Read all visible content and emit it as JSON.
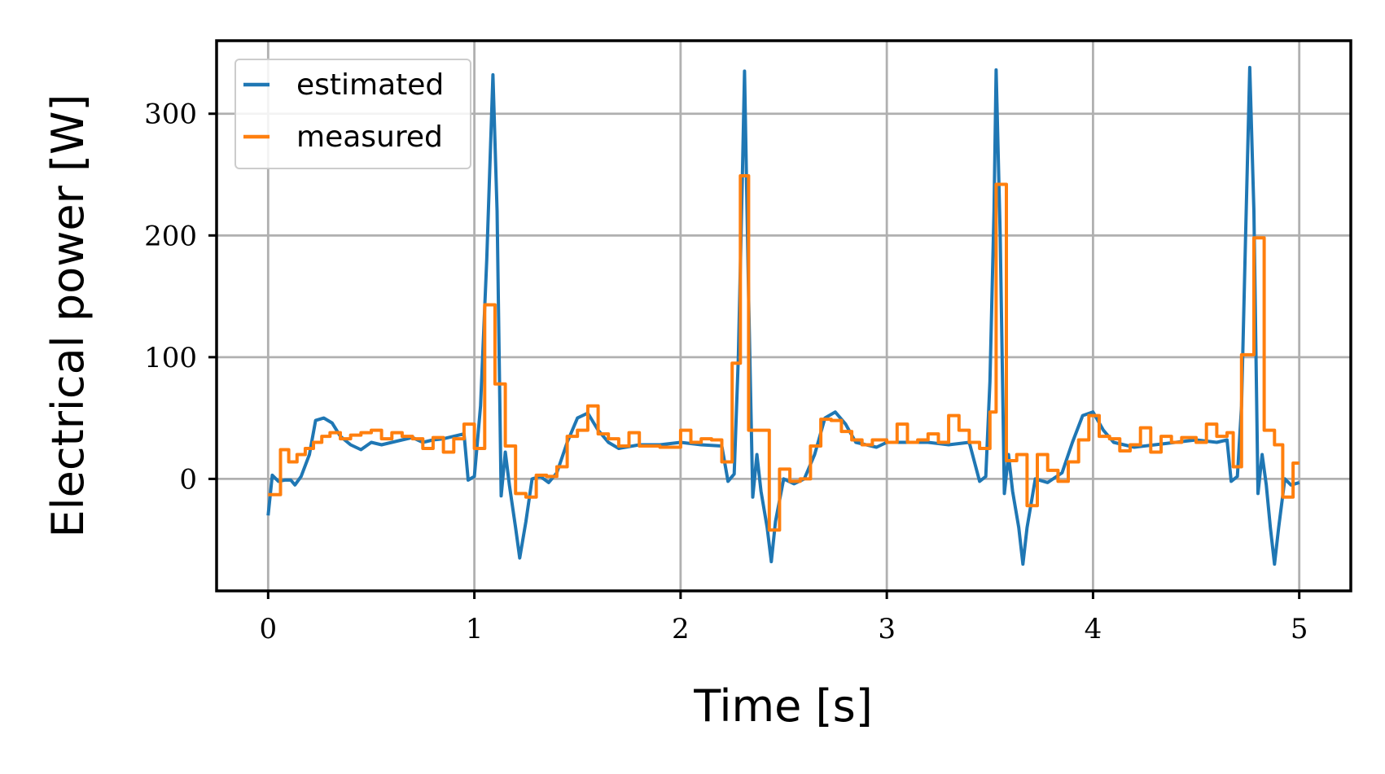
{
  "chart_data": {
    "type": "line",
    "title": "",
    "xlabel": "Time [s]",
    "ylabel": "Electrical power [W]",
    "xlim": [
      -0.25,
      5.25
    ],
    "ylim": [
      -92,
      360
    ],
    "xticks": [
      0,
      1,
      2,
      3,
      4,
      5
    ],
    "yticks": [
      0,
      100,
      200,
      300
    ],
    "grid": true,
    "legend_position": "top-left",
    "colors": {
      "estimated": "#1f77b4",
      "measured": "#ff7f0e"
    },
    "series": [
      {
        "name": "estimated",
        "kind": "line",
        "points": [
          [
            0.0,
            -30
          ],
          [
            0.02,
            3
          ],
          [
            0.05,
            -2
          ],
          [
            0.08,
            -1
          ],
          [
            0.11,
            -1
          ],
          [
            0.13,
            -5
          ],
          [
            0.16,
            2
          ],
          [
            0.2,
            20
          ],
          [
            0.23,
            48
          ],
          [
            0.27,
            50
          ],
          [
            0.31,
            46
          ],
          [
            0.35,
            35
          ],
          [
            0.4,
            28
          ],
          [
            0.45,
            24
          ],
          [
            0.5,
            30
          ],
          [
            0.55,
            28
          ],
          [
            0.6,
            30
          ],
          [
            0.65,
            32
          ],
          [
            0.7,
            34
          ],
          [
            0.75,
            30
          ],
          [
            0.8,
            32
          ],
          [
            0.85,
            33
          ],
          [
            0.9,
            35
          ],
          [
            0.95,
            37
          ],
          [
            0.97,
            -1
          ],
          [
            1.0,
            2
          ],
          [
            1.03,
            60
          ],
          [
            1.06,
            180
          ],
          [
            1.09,
            332
          ],
          [
            1.11,
            220
          ],
          [
            1.13,
            -14
          ],
          [
            1.15,
            22
          ],
          [
            1.17,
            -5
          ],
          [
            1.2,
            -40
          ],
          [
            1.22,
            -65
          ],
          [
            1.25,
            -35
          ],
          [
            1.28,
            0
          ],
          [
            1.32,
            2
          ],
          [
            1.36,
            -3
          ],
          [
            1.4,
            5
          ],
          [
            1.45,
            30
          ],
          [
            1.5,
            50
          ],
          [
            1.55,
            54
          ],
          [
            1.6,
            40
          ],
          [
            1.65,
            30
          ],
          [
            1.7,
            25
          ],
          [
            1.8,
            28
          ],
          [
            1.9,
            28
          ],
          [
            2.0,
            30
          ],
          [
            2.1,
            28
          ],
          [
            2.2,
            27
          ],
          [
            2.23,
            -2
          ],
          [
            2.26,
            4
          ],
          [
            2.28,
            100
          ],
          [
            2.3,
            250
          ],
          [
            2.31,
            335
          ],
          [
            2.33,
            150
          ],
          [
            2.35,
            -15
          ],
          [
            2.37,
            20
          ],
          [
            2.39,
            -10
          ],
          [
            2.42,
            -40
          ],
          [
            2.44,
            -68
          ],
          [
            2.46,
            -35
          ],
          [
            2.5,
            0
          ],
          [
            2.55,
            -4
          ],
          [
            2.6,
            0
          ],
          [
            2.65,
            20
          ],
          [
            2.7,
            50
          ],
          [
            2.75,
            55
          ],
          [
            2.8,
            45
          ],
          [
            2.85,
            30
          ],
          [
            2.95,
            26
          ],
          [
            3.0,
            30
          ],
          [
            3.1,
            30
          ],
          [
            3.2,
            30
          ],
          [
            3.3,
            28
          ],
          [
            3.4,
            30
          ],
          [
            3.45,
            -2
          ],
          [
            3.48,
            2
          ],
          [
            3.5,
            80
          ],
          [
            3.52,
            220
          ],
          [
            3.53,
            336
          ],
          [
            3.55,
            200
          ],
          [
            3.57,
            -12
          ],
          [
            3.59,
            20
          ],
          [
            3.61,
            -10
          ],
          [
            3.64,
            -40
          ],
          [
            3.66,
            -70
          ],
          [
            3.68,
            -40
          ],
          [
            3.72,
            0
          ],
          [
            3.78,
            -3
          ],
          [
            3.85,
            5
          ],
          [
            3.9,
            30
          ],
          [
            3.95,
            52
          ],
          [
            4.0,
            55
          ],
          [
            4.05,
            40
          ],
          [
            4.1,
            30
          ],
          [
            4.2,
            26
          ],
          [
            4.3,
            28
          ],
          [
            4.4,
            30
          ],
          [
            4.5,
            32
          ],
          [
            4.6,
            30
          ],
          [
            4.65,
            32
          ],
          [
            4.67,
            -2
          ],
          [
            4.7,
            2
          ],
          [
            4.72,
            60
          ],
          [
            4.74,
            200
          ],
          [
            4.76,
            338
          ],
          [
            4.78,
            220
          ],
          [
            4.8,
            -12
          ],
          [
            4.82,
            20
          ],
          [
            4.84,
            -5
          ],
          [
            4.86,
            -40
          ],
          [
            4.88,
            -70
          ],
          [
            4.9,
            -40
          ],
          [
            4.93,
            0
          ],
          [
            4.96,
            -5
          ],
          [
            5.0,
            -3
          ]
        ]
      },
      {
        "name": "measured",
        "kind": "step",
        "points": [
          [
            0.0,
            -13
          ],
          [
            0.06,
            24
          ],
          [
            0.1,
            14
          ],
          [
            0.14,
            20
          ],
          [
            0.18,
            25
          ],
          [
            0.22,
            30
          ],
          [
            0.26,
            35
          ],
          [
            0.3,
            38
          ],
          [
            0.35,
            33
          ],
          [
            0.4,
            36
          ],
          [
            0.45,
            38
          ],
          [
            0.5,
            40
          ],
          [
            0.55,
            33
          ],
          [
            0.6,
            38
          ],
          [
            0.65,
            35
          ],
          [
            0.7,
            33
          ],
          [
            0.75,
            25
          ],
          [
            0.8,
            34
          ],
          [
            0.85,
            22
          ],
          [
            0.9,
            33
          ],
          [
            0.95,
            45
          ],
          [
            1.0,
            25
          ],
          [
            1.05,
            143
          ],
          [
            1.1,
            78
          ],
          [
            1.15,
            27
          ],
          [
            1.2,
            -12
          ],
          [
            1.25,
            -15
          ],
          [
            1.3,
            3
          ],
          [
            1.35,
            2
          ],
          [
            1.4,
            10
          ],
          [
            1.45,
            35
          ],
          [
            1.5,
            40
          ],
          [
            1.55,
            60
          ],
          [
            1.6,
            37
          ],
          [
            1.65,
            33
          ],
          [
            1.7,
            27
          ],
          [
            1.75,
            38
          ],
          [
            1.8,
            27
          ],
          [
            1.9,
            26
          ],
          [
            2.0,
            40
          ],
          [
            2.05,
            30
          ],
          [
            2.1,
            33
          ],
          [
            2.15,
            32
          ],
          [
            2.2,
            14
          ],
          [
            2.25,
            95
          ],
          [
            2.29,
            249
          ],
          [
            2.33,
            40
          ],
          [
            2.43,
            -42
          ],
          [
            2.48,
            8
          ],
          [
            2.53,
            -2
          ],
          [
            2.58,
            0
          ],
          [
            2.63,
            27
          ],
          [
            2.68,
            49
          ],
          [
            2.73,
            48
          ],
          [
            2.78,
            39
          ],
          [
            2.83,
            32
          ],
          [
            2.88,
            28
          ],
          [
            2.93,
            32
          ],
          [
            3.0,
            30
          ],
          [
            3.05,
            45
          ],
          [
            3.1,
            30
          ],
          [
            3.15,
            32
          ],
          [
            3.2,
            37
          ],
          [
            3.25,
            30
          ],
          [
            3.3,
            52
          ],
          [
            3.35,
            40
          ],
          [
            3.4,
            30
          ],
          [
            3.45,
            25
          ],
          [
            3.5,
            55
          ],
          [
            3.53,
            242
          ],
          [
            3.58,
            15
          ],
          [
            3.63,
            20
          ],
          [
            3.68,
            -22
          ],
          [
            3.73,
            20
          ],
          [
            3.78,
            7
          ],
          [
            3.83,
            -2
          ],
          [
            3.88,
            14
          ],
          [
            3.93,
            32
          ],
          [
            3.98,
            52
          ],
          [
            4.03,
            35
          ],
          [
            4.08,
            33
          ],
          [
            4.13,
            23
          ],
          [
            4.18,
            28
          ],
          [
            4.23,
            42
          ],
          [
            4.28,
            22
          ],
          [
            4.33,
            35
          ],
          [
            4.38,
            30
          ],
          [
            4.43,
            34
          ],
          [
            4.5,
            30
          ],
          [
            4.55,
            45
          ],
          [
            4.6,
            35
          ],
          [
            4.65,
            38
          ],
          [
            4.68,
            10
          ],
          [
            4.72,
            102
          ],
          [
            4.78,
            198
          ],
          [
            4.83,
            40
          ],
          [
            4.88,
            28
          ],
          [
            4.92,
            -15
          ],
          [
            4.97,
            13
          ],
          [
            5.0,
            13
          ]
        ]
      }
    ]
  }
}
